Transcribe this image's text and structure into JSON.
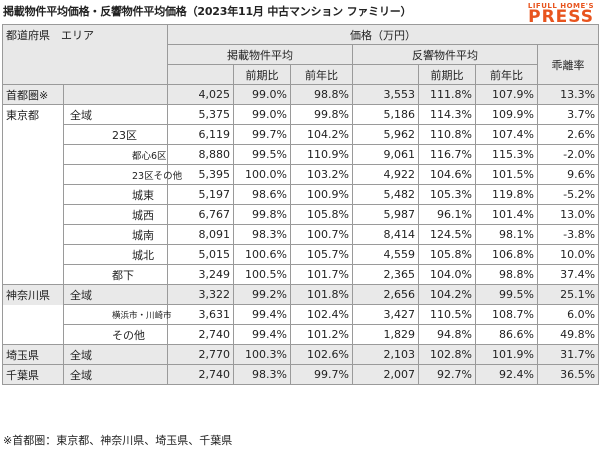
{
  "title": "掲載物件平均価格・反響物件平均価格（2023年11月 中古マンション ファミリー）",
  "logo": {
    "top": "LIFULL HOME'S",
    "main": "PRESS"
  },
  "header": {
    "col_region": "都道府県　エリア",
    "col_price": "価格（万円）",
    "col_listed": "掲載物件平均",
    "col_inquiry": "反響物件平均",
    "col_gap": "乖離率",
    "prev_month": "前期比",
    "prev_year": "前年比"
  },
  "rows": [
    {
      "pref": "首都圏※",
      "area": "",
      "indent": 0,
      "lp": "4,025",
      "lpm": "99.0%",
      "lpy": "98.8%",
      "ip": "3,553",
      "ipm": "111.8%",
      "ipy": "107.9%",
      "gap": "13.3%",
      "gray": true,
      "top": true
    },
    {
      "pref": "東京都",
      "area": "全域",
      "indent": 0,
      "lp": "5,375",
      "lpm": "99.0%",
      "lpy": "99.8%",
      "ip": "5,186",
      "ipm": "114.3%",
      "ipy": "109.9%",
      "gap": "3.7%",
      "gray": false,
      "top": true
    },
    {
      "pref": "",
      "area": "23区",
      "indent": 1,
      "lp": "6,119",
      "lpm": "99.7%",
      "lpy": "104.2%",
      "ip": "5,962",
      "ipm": "110.8%",
      "ipy": "107.4%",
      "gap": "2.6%",
      "gray": false,
      "top": false
    },
    {
      "pref": "",
      "area": "都心6区",
      "indent": 2,
      "lp": "8,880",
      "lpm": "99.5%",
      "lpy": "110.9%",
      "ip": "9,061",
      "ipm": "116.7%",
      "ipy": "115.3%",
      "gap": "-2.0%",
      "gray": false,
      "top": false,
      "size": "small"
    },
    {
      "pref": "",
      "area": "23区その他",
      "indent": 2,
      "lp": "5,395",
      "lpm": "100.0%",
      "lpy": "103.2%",
      "ip": "4,922",
      "ipm": "104.6%",
      "ipy": "101.5%",
      "gap": "9.6%",
      "gray": false,
      "top": false,
      "size": "small"
    },
    {
      "pref": "",
      "area": "城東",
      "indent": 2,
      "lp": "5,197",
      "lpm": "98.6%",
      "lpy": "100.9%",
      "ip": "5,482",
      "ipm": "105.3%",
      "ipy": "119.8%",
      "gap": "-5.2%",
      "gray": false,
      "top": false
    },
    {
      "pref": "",
      "area": "城西",
      "indent": 2,
      "lp": "6,767",
      "lpm": "99.8%",
      "lpy": "105.8%",
      "ip": "5,987",
      "ipm": "96.1%",
      "ipy": "101.4%",
      "gap": "13.0%",
      "gray": false,
      "top": false
    },
    {
      "pref": "",
      "area": "城南",
      "indent": 2,
      "lp": "8,091",
      "lpm": "98.3%",
      "lpy": "100.7%",
      "ip": "8,414",
      "ipm": "124.5%",
      "ipy": "98.1%",
      "gap": "-3.8%",
      "gray": false,
      "top": false
    },
    {
      "pref": "",
      "area": "城北",
      "indent": 2,
      "lp": "5,015",
      "lpm": "100.6%",
      "lpy": "105.7%",
      "ip": "4,559",
      "ipm": "105.8%",
      "ipy": "106.8%",
      "gap": "10.0%",
      "gray": false,
      "top": false
    },
    {
      "pref": "",
      "area": "都下",
      "indent": 1,
      "lp": "3,249",
      "lpm": "100.5%",
      "lpy": "101.7%",
      "ip": "2,365",
      "ipm": "104.0%",
      "ipy": "98.8%",
      "gap": "37.4%",
      "gray": false,
      "top": false
    },
    {
      "pref": "神奈川県",
      "area": "全域",
      "indent": 0,
      "lp": "3,322",
      "lpm": "99.2%",
      "lpy": "101.8%",
      "ip": "2,656",
      "ipm": "104.2%",
      "ipy": "99.5%",
      "gap": "25.1%",
      "gray": true,
      "top": true
    },
    {
      "pref": "",
      "area": "横浜市・川崎市",
      "indent": 1,
      "lp": "3,631",
      "lpm": "99.4%",
      "lpy": "102.4%",
      "ip": "3,427",
      "ipm": "110.5%",
      "ipy": "108.7%",
      "gap": "6.0%",
      "gray": false,
      "top": false,
      "size": "tiny"
    },
    {
      "pref": "",
      "area": "その他",
      "indent": 1,
      "lp": "2,740",
      "lpm": "99.4%",
      "lpy": "101.2%",
      "ip": "1,829",
      "ipm": "94.8%",
      "ipy": "86.6%",
      "gap": "49.8%",
      "gray": false,
      "top": false
    },
    {
      "pref": "埼玉県",
      "area": "全域",
      "indent": 0,
      "lp": "2,770",
      "lpm": "100.3%",
      "lpy": "102.6%",
      "ip": "2,103",
      "ipm": "102.8%",
      "ipy": "101.9%",
      "gap": "31.7%",
      "gray": true,
      "top": true
    },
    {
      "pref": "千葉県",
      "area": "全域",
      "indent": 0,
      "lp": "2,740",
      "lpm": "98.3%",
      "lpy": "99.7%",
      "ip": "2,007",
      "ipm": "92.7%",
      "ipy": "92.4%",
      "gap": "36.5%",
      "gray": true,
      "top": true
    }
  ],
  "note": "※首都圏：東京都、神奈川県、埼玉県、千葉県"
}
